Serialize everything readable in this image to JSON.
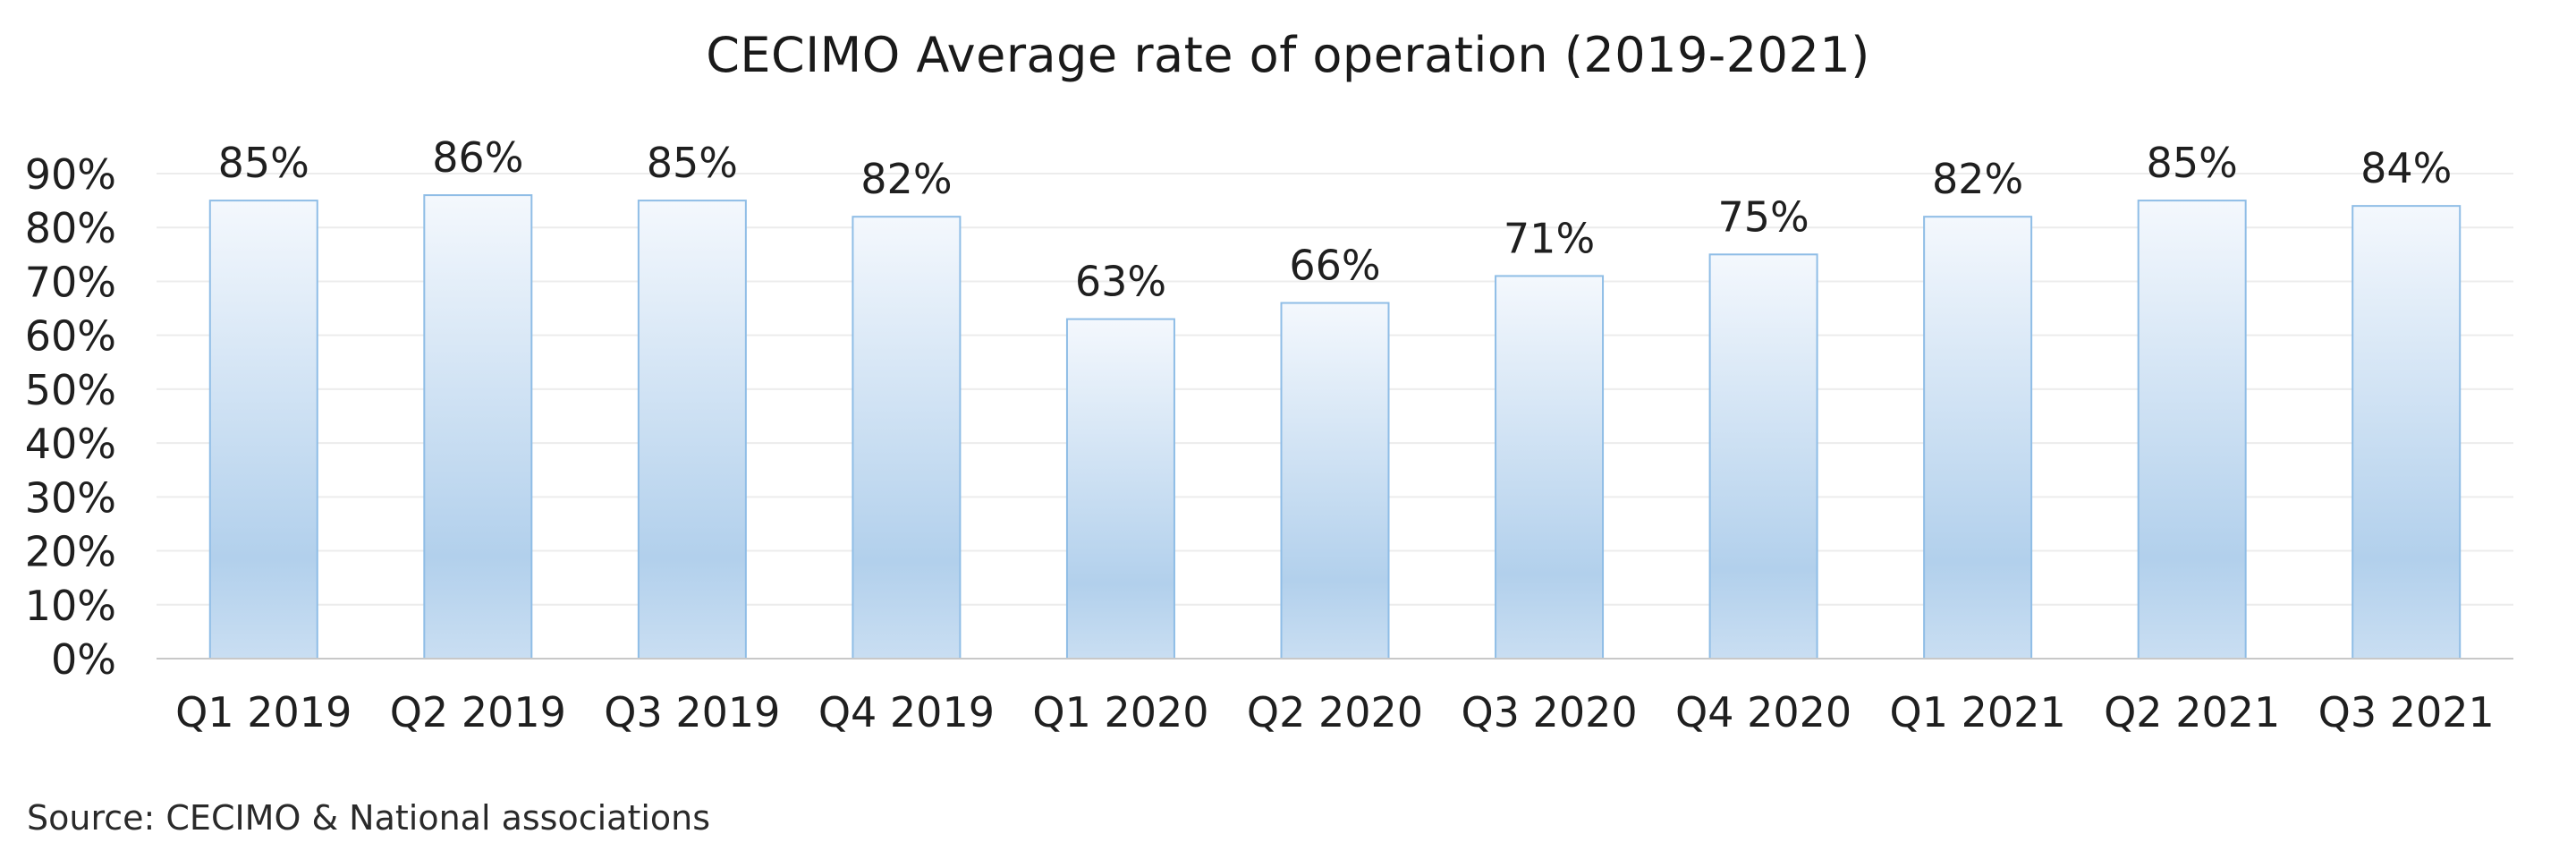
{
  "chart_data": {
    "type": "bar",
    "title": "CECIMO Average rate of operation (2019-2021)",
    "source": "Source: CECIMO & National associations",
    "categories": [
      "Q1 2019",
      "Q2 2019",
      "Q3 2019",
      "Q4 2019",
      "Q1 2020",
      "Q2 2020",
      "Q3 2020",
      "Q4 2020",
      "Q1 2021",
      "Q2 2021",
      "Q3 2021"
    ],
    "values": [
      85,
      86,
      85,
      82,
      63,
      66,
      71,
      75,
      82,
      85,
      84
    ],
    "value_labels": [
      "85%",
      "86%",
      "85%",
      "82%",
      "63%",
      "66%",
      "71%",
      "75%",
      "82%",
      "85%",
      "84%"
    ],
    "y_ticks": [
      0,
      10,
      20,
      30,
      40,
      50,
      60,
      70,
      80,
      90
    ],
    "y_tick_labels": [
      "0%",
      "10%",
      "20%",
      "30%",
      "40%",
      "50%",
      "60%",
      "70%",
      "80%",
      "90%"
    ],
    "ylim": [
      0,
      90
    ],
    "xlabel": "",
    "ylabel": "",
    "grid": true,
    "legend": "none",
    "colors": {
      "bar_top": "#f4f8fd",
      "bar_mid": "#b2d0ec",
      "bar_bottom": "#c9def2",
      "bar_border": "#8fbde6",
      "grid": "#ececec",
      "axis": "#c8c8c8",
      "text": "#1f1f1f"
    }
  }
}
